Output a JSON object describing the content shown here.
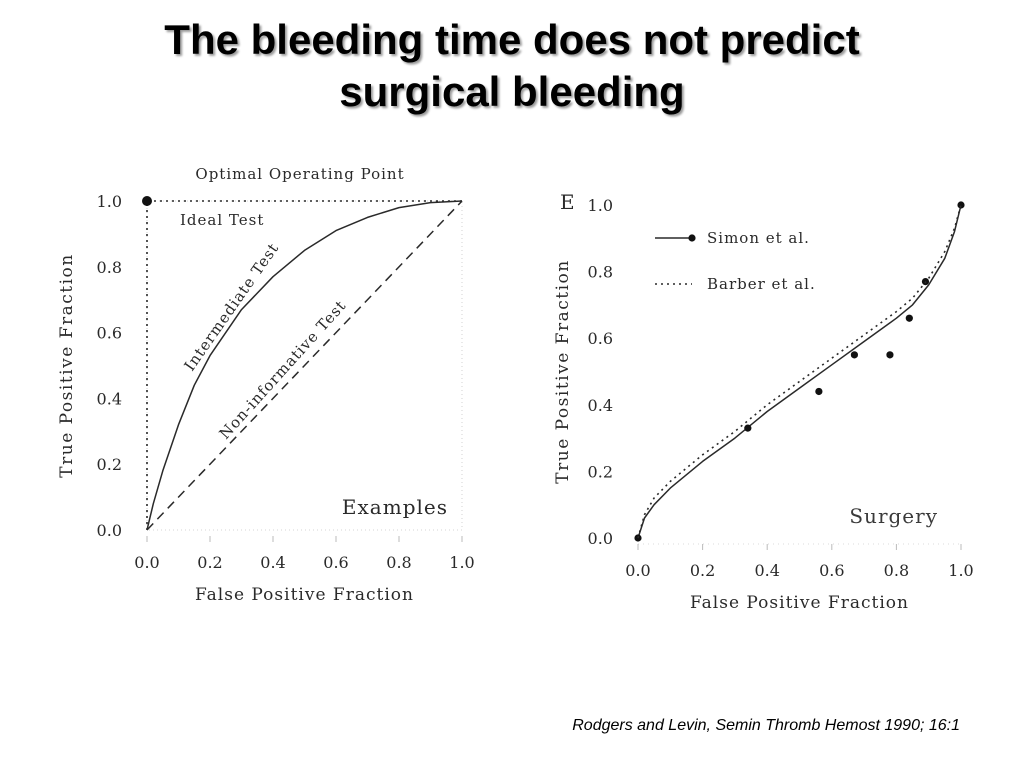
{
  "slide": {
    "title_line1": "The bleeding time does not predict",
    "title_line2": "surgical bleeding",
    "citation": "Rodgers and Levin, Semin Thromb Hemost 1990; 16:1"
  },
  "chart_data": [
    {
      "type": "line",
      "title": "",
      "xlabel": "False Positive Fraction",
      "ylabel": "True Positive Fraction",
      "xlim": [
        0.0,
        1.0
      ],
      "ylim": [
        0.0,
        1.0
      ],
      "xticks": [
        "0.0",
        "0.2",
        "0.4",
        "0.6",
        "0.8",
        "1.0"
      ],
      "yticks": [
        "0.0",
        "0.2",
        "0.4",
        "0.6",
        "0.8",
        "1.0"
      ],
      "grid": false,
      "corner_label": "Examples",
      "optimal_point": {
        "label": "Optimal Operating Point",
        "x": 0.0,
        "y": 1.0
      },
      "series": [
        {
          "name": "Ideal Test",
          "style": "dotted",
          "x": [
            0.0,
            0.0,
            1.0
          ],
          "y": [
            0.0,
            1.0,
            1.0
          ]
        },
        {
          "name": "Intermediate Test",
          "style": "solid",
          "x": [
            0.0,
            0.02,
            0.05,
            0.1,
            0.15,
            0.2,
            0.3,
            0.4,
            0.5,
            0.6,
            0.7,
            0.8,
            0.9,
            1.0
          ],
          "y": [
            0.0,
            0.08,
            0.18,
            0.32,
            0.44,
            0.53,
            0.67,
            0.77,
            0.85,
            0.91,
            0.95,
            0.98,
            0.995,
            1.0
          ]
        },
        {
          "name": "Non-informative Test",
          "style": "dashed",
          "x": [
            0.0,
            1.0
          ],
          "y": [
            0.0,
            1.0
          ]
        }
      ]
    },
    {
      "type": "line",
      "title": "",
      "panel_label": "E",
      "xlabel": "False Positive Fraction",
      "ylabel": "True Positive Fraction",
      "xlim": [
        0.0,
        1.0
      ],
      "ylim": [
        0.0,
        1.0
      ],
      "xticks": [
        "0.0",
        "0.2",
        "0.4",
        "0.6",
        "0.8",
        "1.0"
      ],
      "yticks": [
        "0.0",
        "0.2",
        "0.4",
        "0.6",
        "0.8",
        "1.0"
      ],
      "grid": false,
      "legend_position": "top-left",
      "corner_label": "Surgery",
      "series": [
        {
          "name": "Simon et al.",
          "style": "solid-markers",
          "x": [
            0.0,
            0.02,
            0.05,
            0.1,
            0.2,
            0.3,
            0.4,
            0.5,
            0.6,
            0.7,
            0.8,
            0.85,
            0.9,
            0.95,
            0.98,
            1.0
          ],
          "y": [
            0.0,
            0.06,
            0.1,
            0.15,
            0.23,
            0.3,
            0.38,
            0.45,
            0.52,
            0.59,
            0.66,
            0.7,
            0.76,
            0.84,
            0.92,
            1.0
          ],
          "points_x": [
            0.0,
            0.34,
            0.56,
            0.67,
            0.78,
            0.84,
            0.89,
            1.0
          ],
          "points_y": [
            0.0,
            0.33,
            0.44,
            0.55,
            0.55,
            0.66,
            0.77,
            1.0
          ]
        },
        {
          "name": "Barber et al.",
          "style": "dotted",
          "x": [
            0.0,
            0.02,
            0.05,
            0.1,
            0.2,
            0.3,
            0.4,
            0.5,
            0.6,
            0.7,
            0.8,
            0.85,
            0.9,
            0.95,
            0.98,
            1.0
          ],
          "y": [
            0.0,
            0.07,
            0.12,
            0.17,
            0.25,
            0.32,
            0.4,
            0.47,
            0.54,
            0.61,
            0.68,
            0.72,
            0.78,
            0.86,
            0.93,
            1.0
          ]
        }
      ]
    }
  ]
}
